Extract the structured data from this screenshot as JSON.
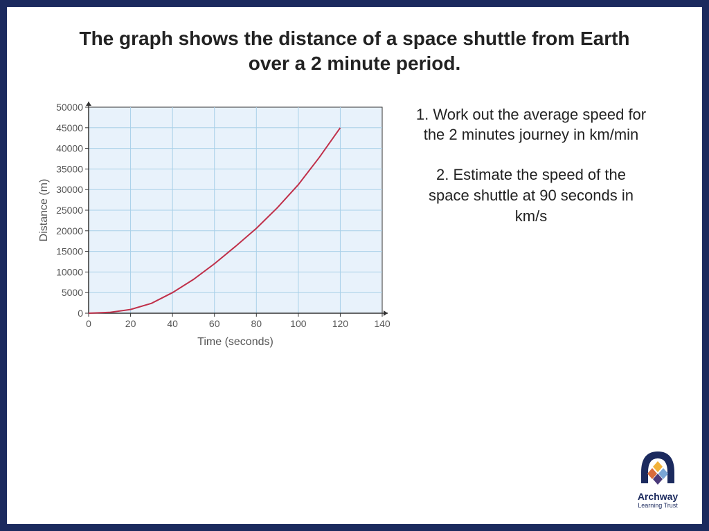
{
  "title": "The graph shows the distance of a space shuttle from Earth over a 2 minute period.",
  "questions": {
    "q1_num": "1.",
    "q1_text": "Work out the average speed for the 2 minutes journey in km/min",
    "q2_num": "2.",
    "q2_text": "Estimate the speed of the space shuttle at 90 seconds in km/s"
  },
  "chart": {
    "type": "line",
    "xlabel": "Time (seconds)",
    "ylabel": "Distance (m)",
    "xlim": [
      0,
      140
    ],
    "ylim": [
      0,
      50000
    ],
    "xtick_step": 20,
    "ytick_step": 5000,
    "xticks": [
      0,
      20,
      40,
      60,
      80,
      100,
      120,
      140
    ],
    "yticks": [
      0,
      5000,
      10000,
      15000,
      20000,
      25000,
      30000,
      35000,
      40000,
      45000,
      50000
    ],
    "plot_bg": "#e8f2fb",
    "grid_color": "#a8d0e8",
    "axis_color": "#333333",
    "line_color": "#c0304a",
    "line_width": 2,
    "label_color": "#555555",
    "tick_fontsize": 14,
    "label_fontsize": 16,
    "data": [
      {
        "x": 0,
        "y": 0
      },
      {
        "x": 10,
        "y": 200
      },
      {
        "x": 20,
        "y": 900
      },
      {
        "x": 30,
        "y": 2400
      },
      {
        "x": 40,
        "y": 5000
      },
      {
        "x": 50,
        "y": 8200
      },
      {
        "x": 60,
        "y": 12000
      },
      {
        "x": 70,
        "y": 16200
      },
      {
        "x": 80,
        "y": 20600
      },
      {
        "x": 90,
        "y": 25600
      },
      {
        "x": 100,
        "y": 31200
      },
      {
        "x": 110,
        "y": 37800
      },
      {
        "x": 120,
        "y": 45000
      }
    ]
  },
  "logo": {
    "name": "Archway",
    "sub": "Learning Trust",
    "colors": {
      "outer": "#1b2a5e",
      "inner_top": "#f2b23a",
      "inner_left": "#d96b3a",
      "inner_right": "#7aa6d6",
      "inner_bottom": "#4a3a7a"
    }
  }
}
